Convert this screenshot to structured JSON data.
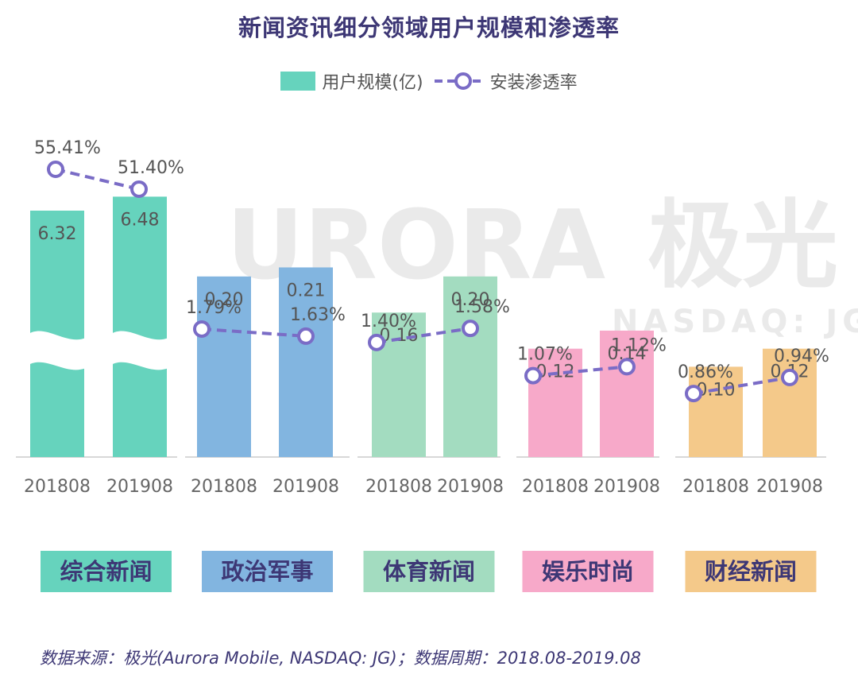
{
  "chart_data": {
    "type": "bar",
    "title": "新闻资讯细分领域用户规模和渗透率",
    "legend": {
      "bar_label": "用户规模(亿)",
      "line_label": "安装渗透率",
      "placement": "top-center"
    },
    "series": [
      {
        "name": "用户规模(亿)",
        "kind": "bar"
      },
      {
        "name": "安装渗透率",
        "kind": "line"
      }
    ],
    "groups": [
      {
        "name": "综合新闻",
        "color": "#66d3bd",
        "bars": [
          {
            "period": "201808",
            "value": 6.32,
            "label": "6.32",
            "rate": 55.41,
            "rate_label": "55.41%"
          },
          {
            "period": "201908",
            "value": 6.48,
            "label": "6.48",
            "rate": 51.4,
            "rate_label": "51.40%"
          }
        ]
      },
      {
        "name": "政治军事",
        "color": "#82b5e0",
        "bars": [
          {
            "period": "201808",
            "value": 0.2,
            "label": "0.20",
            "rate": 1.79,
            "rate_label": "1.79%"
          },
          {
            "period": "201908",
            "value": 0.21,
            "label": "0.21",
            "rate": 1.63,
            "rate_label": "1.63%"
          }
        ]
      },
      {
        "name": "体育新闻",
        "color": "#a3dcc0",
        "bars": [
          {
            "period": "201808",
            "value": 0.16,
            "label": "0.16",
            "rate": 1.4,
            "rate_label": "1.40%"
          },
          {
            "period": "201908",
            "value": 0.2,
            "label": "0.20",
            "rate": 1.58,
            "rate_label": "1.58%"
          }
        ]
      },
      {
        "name": "娱乐时尚",
        "color": "#f7a9c9",
        "bars": [
          {
            "period": "201808",
            "value": 0.12,
            "label": "0.12",
            "rate": 1.07,
            "rate_label": "1.07%"
          },
          {
            "period": "201908",
            "value": 0.14,
            "label": "0.14",
            "rate": 1.12,
            "rate_label": "1.12%"
          }
        ]
      },
      {
        "name": "财经新闻",
        "color": "#f4c98a",
        "bars": [
          {
            "period": "201808",
            "value": 0.1,
            "label": "0.10",
            "rate": 0.86,
            "rate_label": "0.86%"
          },
          {
            "period": "201908",
            "value": 0.12,
            "label": "0.12",
            "rate": 0.94,
            "rate_label": "0.94%"
          }
        ]
      }
    ],
    "line_color": "#7a6cc6",
    "category_label_color": "#3d3775",
    "watermark": [
      "URORA",
      "极光",
      "NASDAQ: JG"
    ],
    "axis_break_on_group": "综合新闻"
  },
  "source": "数据来源：极光(Aurora Mobile, NASDAQ: JG)；数据周期：2018.08-2019.08"
}
